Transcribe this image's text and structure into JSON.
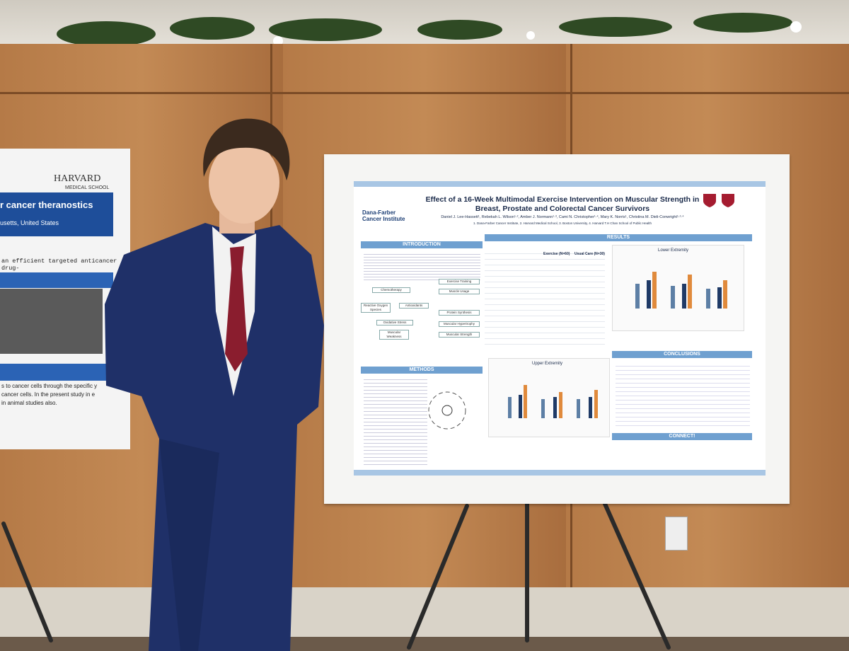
{
  "left_poster": {
    "logo": "HARVARD",
    "logo_sub": "MEDICAL SCHOOL",
    "title_fragment": "r cancer theranostics",
    "location_fragment": "usetts, United States",
    "text_fragment": "an efficient targeted anticancer drug-",
    "body_fragment": "s to cancer cells through the specific y cancer cells. In the present study in e in animal studies also."
  },
  "poster": {
    "institution": "Dana-Farber Cancer Institute",
    "title": "Effect of a 16-Week Multimodal Exercise Intervention on Muscular Strength in Breast, Prostate and Colorectal Cancer Survivors",
    "authors": "Daniel J. Lee-Hassett¹, Rebekah L. Wilson¹·², Amber J. Normann¹·³, Cami N. Christopher¹·⁴, Mary K. Norris¹, Christina M. Dieli-Conwright¹·²·⁴",
    "affiliations": "1. Dana-Farber Cancer Institute, 2. Harvard Medical School, 3. Boston University, 4. Harvard T.H Chan School of Public Health",
    "sections": [
      "INTRODUCTION",
      "RESULTS",
      "METHODS",
      "CONCLUSIONS",
      "CONNECT!"
    ],
    "flow": [
      "Chemotherapy",
      "Reactive Oxygen Species",
      "Antioxidants",
      "Oxidative Stress",
      "Muscular Weakness",
      "Exercise Training",
      "Muscle Usage",
      "Protein Synthesis",
      "Muscular Hypertrophy",
      "Muscular Strength"
    ],
    "table_headers": [
      "Exercise (N=60)",
      "Usual Care (N=30)"
    ],
    "chart_titles": [
      "Lower Extremity",
      "Upper Extremity"
    ]
  }
}
